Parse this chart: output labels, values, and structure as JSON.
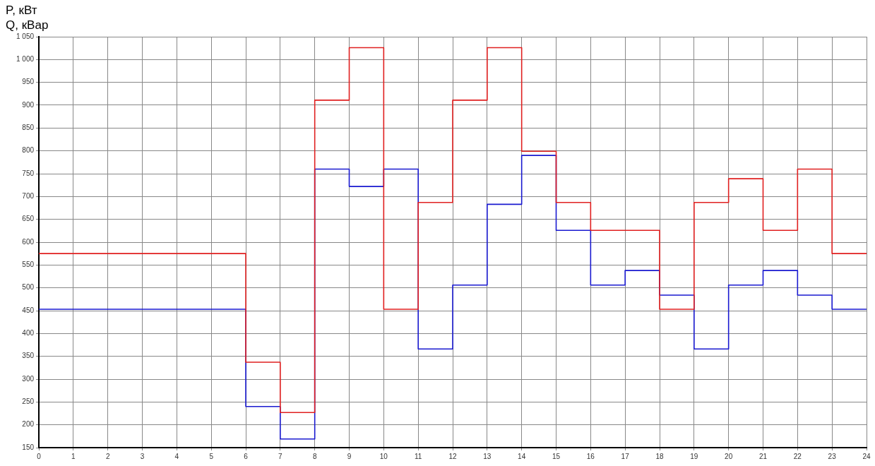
{
  "chart_data": {
    "type": "step",
    "ylabel": "P, кВт\nQ, кВар",
    "x": [
      0,
      1,
      2,
      3,
      4,
      5,
      6,
      7,
      8,
      9,
      10,
      11,
      12,
      13,
      14,
      15,
      16,
      17,
      18,
      19,
      20,
      21,
      22,
      23,
      24
    ],
    "series": [
      {
        "color": "#e02020",
        "values": [
          575,
          575,
          575,
          575,
          575,
          575,
          337,
          227,
          911,
          1026,
          453,
          687,
          911,
          1026,
          799,
          687,
          626,
          626,
          453,
          687,
          739,
          626,
          760,
          575,
          575
        ]
      },
      {
        "color": "#1a1ad0",
        "values": [
          453,
          453,
          453,
          453,
          453,
          453,
          240,
          169,
          760,
          722,
          760,
          366,
          506,
          683,
          790,
          626,
          506,
          538,
          484,
          366,
          506,
          538,
          484,
          453,
          453
        ]
      }
    ],
    "xlim": [
      0,
      24
    ],
    "xticks": [
      0,
      1,
      2,
      3,
      4,
      5,
      6,
      7,
      8,
      9,
      10,
      11,
      12,
      13,
      14,
      15,
      16,
      17,
      18,
      19,
      20,
      21,
      22,
      23,
      24
    ],
    "ylim": [
      150,
      1050
    ],
    "yticks": [
      150,
      200,
      250,
      300,
      350,
      400,
      450,
      500,
      550,
      600,
      650,
      700,
      750,
      800,
      850,
      900,
      950,
      {
        "value": 1000,
        "label": "1 000"
      },
      {
        "value": 1050,
        "label": "1 050"
      }
    ],
    "grid": true,
    "legend": false,
    "marker": "none",
    "line_style": "solid"
  }
}
